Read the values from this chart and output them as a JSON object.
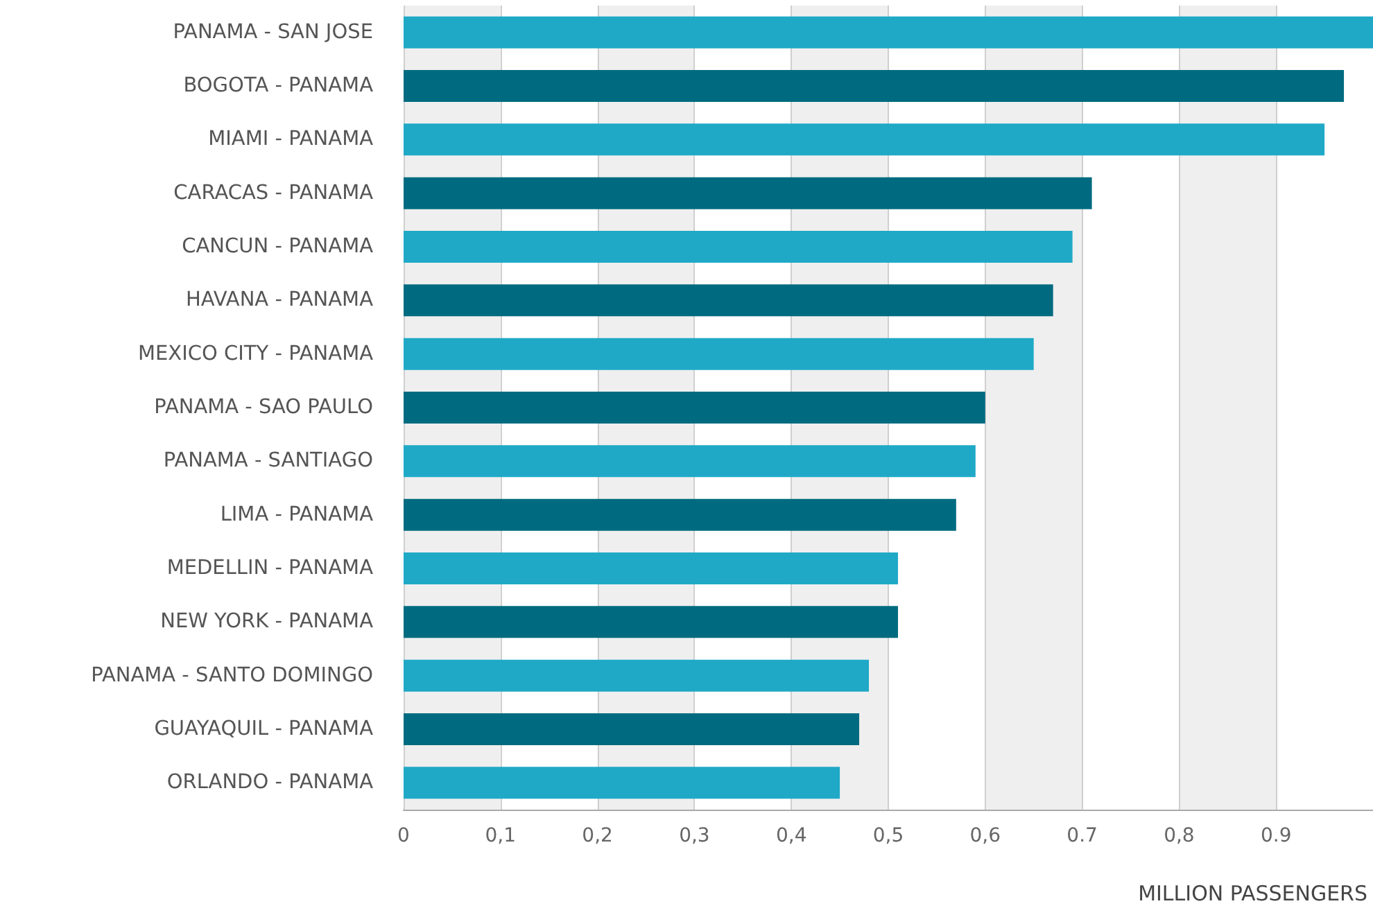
{
  "chart_data": {
    "type": "bar",
    "orientation": "horizontal",
    "xlabel": "MILLION PASSENGERS",
    "categories": [
      "PANAMA - SAN JOSE",
      "BOGOTA - PANAMA",
      "MIAMI - PANAMA",
      "CARACAS - PANAMA",
      "CANCUN - PANAMA",
      "HAVANA - PANAMA",
      "MEXICO CITY - PANAMA",
      "PANAMA - SAO PAULO",
      "PANAMA - SANTIAGO",
      "LIMA - PANAMA",
      "MEDELLIN - PANAMA",
      "NEW YORK - PANAMA",
      "PANAMA - SANTO DOMINGO",
      "GUAYAQUIL - PANAMA",
      "ORLANDO - PANAMA"
    ],
    "values": [
      1.0,
      0.97,
      0.95,
      0.71,
      0.69,
      0.67,
      0.65,
      0.6,
      0.59,
      0.57,
      0.51,
      0.51,
      0.48,
      0.47,
      0.45
    ],
    "colors": [
      "#1fa9c7",
      "#006b80",
      "#1fa9c7",
      "#006b80",
      "#1fa9c7",
      "#006b80",
      "#1fa9c7",
      "#006b80",
      "#1fa9c7",
      "#006b80",
      "#1fa9c7",
      "#006b80",
      "#1fa9c7",
      "#006b80",
      "#1fa9c7"
    ],
    "xlim": [
      0,
      1
    ],
    "xticks": [
      0,
      {
        "value": 0.1,
        "label": "0,1"
      },
      {
        "value": 0.2,
        "label": "0,2"
      },
      {
        "value": 0.3,
        "label": "0,3"
      },
      {
        "value": 0.4,
        "label": "0,4"
      },
      {
        "value": 0.5,
        "label": "0,5"
      },
      {
        "value": 0.6,
        "label": "0,6"
      },
      0.7,
      {
        "value": 0.8,
        "label": "0,8"
      },
      0.9
    ],
    "grid": "x"
  }
}
